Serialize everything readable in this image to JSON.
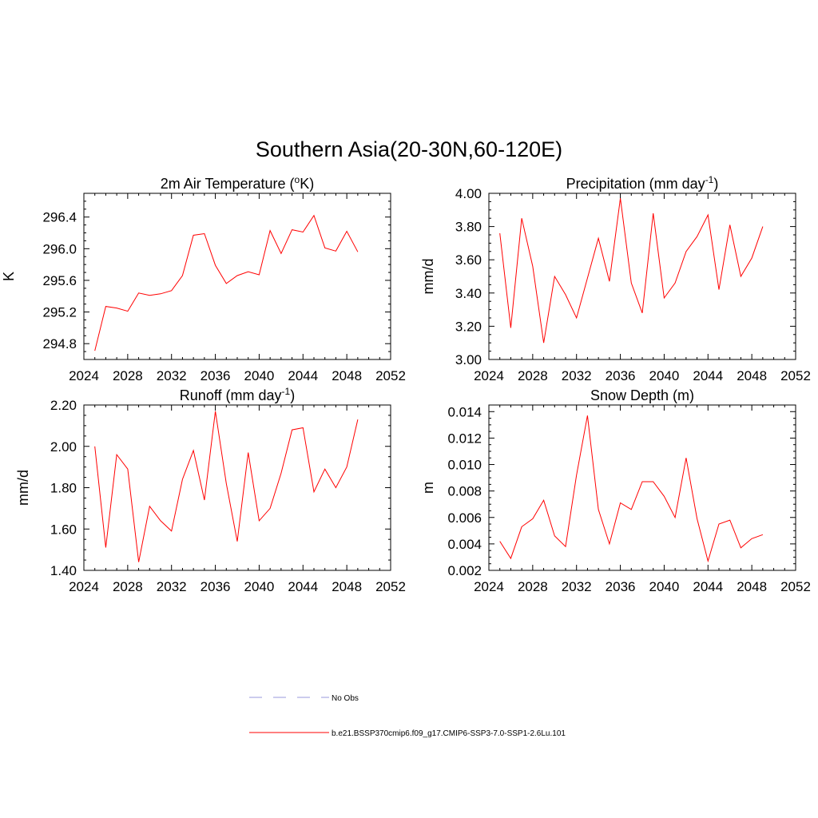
{
  "main_title": "Southern Asia(20-30N,60-120E)",
  "legend": {
    "items": [
      {
        "label": "No Obs",
        "color": "#9999dd",
        "dashed": true
      },
      {
        "label": "b.e21.BSSP370cmip6.f09_g17.CMIP6-SSP3-7.0-SSP1-2.6Lu.101",
        "color": "#ff0000",
        "dashed": false
      }
    ]
  },
  "chart_data": [
    {
      "type": "line",
      "title": "2m Air Temperature (°K)",
      "title_parts": {
        "pre": "2m Air Temperature (",
        "sup": "o",
        "post": "K)"
      },
      "ylabel": "K",
      "xlim": [
        2024,
        2052
      ],
      "ylim": [
        294.6,
        296.7
      ],
      "x_ticks": [
        2024,
        2028,
        2032,
        2036,
        2040,
        2044,
        2048,
        2052
      ],
      "y_ticks": [
        294.8,
        295.2,
        295.6,
        296.0,
        296.4
      ],
      "y_tick_labels": [
        "294.8",
        "295.2",
        "295.6",
        "296.0",
        "296.4"
      ],
      "x_tick_labels": [
        "2024",
        "2028",
        "2032",
        "2036",
        "2040",
        "2044",
        "2048",
        "2052"
      ],
      "series": [
        {
          "color": "#ff0000",
          "x": [
            2025,
            2026,
            2027,
            2028,
            2029,
            2030,
            2031,
            2032,
            2033,
            2034,
            2035,
            2036,
            2037,
            2038,
            2039,
            2040,
            2041,
            2042,
            2043,
            2044,
            2045,
            2046,
            2047,
            2048,
            2049
          ],
          "values": [
            294.71,
            295.27,
            295.25,
            295.21,
            295.44,
            295.41,
            295.43,
            295.47,
            295.66,
            296.17,
            296.19,
            295.79,
            295.56,
            295.66,
            295.71,
            295.67,
            296.23,
            295.94,
            296.24,
            296.21,
            296.42,
            296.01,
            295.97,
            296.22,
            295.96
          ]
        }
      ]
    },
    {
      "type": "line",
      "title": "Precipitation (mm day-1)",
      "title_parts": {
        "pre": "Precipitation (mm day",
        "sup": "-1",
        "post": ")"
      },
      "ylabel": "mm/d",
      "xlim": [
        2024,
        2052
      ],
      "ylim": [
        3.0,
        4.0
      ],
      "x_ticks": [
        2024,
        2028,
        2032,
        2036,
        2040,
        2044,
        2048,
        2052
      ],
      "y_ticks": [
        3.0,
        3.2,
        3.4,
        3.6,
        3.8,
        4.0
      ],
      "y_tick_labels": [
        "3.00",
        "3.20",
        "3.40",
        "3.60",
        "3.80",
        "4.00"
      ],
      "x_tick_labels": [
        "2024",
        "2028",
        "2032",
        "2036",
        "2040",
        "2044",
        "2048",
        "2052"
      ],
      "series": [
        {
          "color": "#ff0000",
          "x": [
            2025,
            2026,
            2027,
            2028,
            2029,
            2030,
            2031,
            2032,
            2033,
            2034,
            2035,
            2036,
            2037,
            2038,
            2039,
            2040,
            2041,
            2042,
            2043,
            2044,
            2045,
            2046,
            2047,
            2048,
            2049
          ],
          "values": [
            3.76,
            3.19,
            3.85,
            3.56,
            3.1,
            3.5,
            3.39,
            3.25,
            3.49,
            3.73,
            3.47,
            3.97,
            3.46,
            3.28,
            3.88,
            3.37,
            3.46,
            3.65,
            3.74,
            3.87,
            3.42,
            3.81,
            3.5,
            3.61,
            3.8
          ]
        }
      ]
    },
    {
      "type": "line",
      "title": "Runoff (mm day-1)",
      "title_parts": {
        "pre": "Runoff (mm day",
        "sup": "-1",
        "post": ")"
      },
      "ylabel": "mm/d",
      "xlim": [
        2024,
        2052
      ],
      "ylim": [
        1.4,
        2.2
      ],
      "x_ticks": [
        2024,
        2028,
        2032,
        2036,
        2040,
        2044,
        2048,
        2052
      ],
      "y_ticks": [
        1.4,
        1.6,
        1.8,
        2.0,
        2.2
      ],
      "y_tick_labels": [
        "1.40",
        "1.60",
        "1.80",
        "2.00",
        "2.20"
      ],
      "x_tick_labels": [
        "2024",
        "2028",
        "2032",
        "2036",
        "2040",
        "2044",
        "2048",
        "2052"
      ],
      "series": [
        {
          "color": "#ff0000",
          "x": [
            2025,
            2026,
            2027,
            2028,
            2029,
            2030,
            2031,
            2032,
            2033,
            2034,
            2035,
            2036,
            2037,
            2038,
            2039,
            2040,
            2041,
            2042,
            2043,
            2044,
            2045,
            2046,
            2047,
            2048,
            2049
          ],
          "values": [
            2.0,
            1.51,
            1.96,
            1.89,
            1.44,
            1.71,
            1.64,
            1.59,
            1.84,
            1.98,
            1.74,
            2.17,
            1.82,
            1.54,
            1.97,
            1.64,
            1.7,
            1.87,
            2.08,
            2.09,
            1.78,
            1.89,
            1.8,
            1.9,
            2.13
          ]
        }
      ]
    },
    {
      "type": "line",
      "title": "Snow Depth (m)",
      "title_parts": {
        "pre": "Snow Depth (m)",
        "sup": "",
        "post": ""
      },
      "ylabel": "m",
      "xlim": [
        2024,
        2052
      ],
      "ylim": [
        0.002,
        0.0145
      ],
      "x_ticks": [
        2024,
        2028,
        2032,
        2036,
        2040,
        2044,
        2048,
        2052
      ],
      "y_ticks": [
        0.002,
        0.004,
        0.006,
        0.008,
        0.01,
        0.012,
        0.014
      ],
      "y_tick_labels": [
        "0.002",
        "0.004",
        "0.006",
        "0.008",
        "0.010",
        "0.012",
        "0.014"
      ],
      "x_tick_labels": [
        "2024",
        "2028",
        "2032",
        "2036",
        "2040",
        "2044",
        "2048",
        "2052"
      ],
      "series": [
        {
          "color": "#ff0000",
          "x": [
            2025,
            2026,
            2027,
            2028,
            2029,
            2030,
            2031,
            2032,
            2033,
            2034,
            2035,
            2036,
            2037,
            2038,
            2039,
            2040,
            2041,
            2042,
            2043,
            2044,
            2045,
            2046,
            2047,
            2048,
            2049
          ],
          "values": [
            0.0042,
            0.0029,
            0.0053,
            0.0059,
            0.0073,
            0.0046,
            0.0038,
            0.0092,
            0.0137,
            0.0066,
            0.004,
            0.0071,
            0.0066,
            0.0087,
            0.0087,
            0.0076,
            0.006,
            0.0105,
            0.0059,
            0.0027,
            0.0055,
            0.0058,
            0.0037,
            0.0044,
            0.0047
          ]
        }
      ]
    }
  ]
}
